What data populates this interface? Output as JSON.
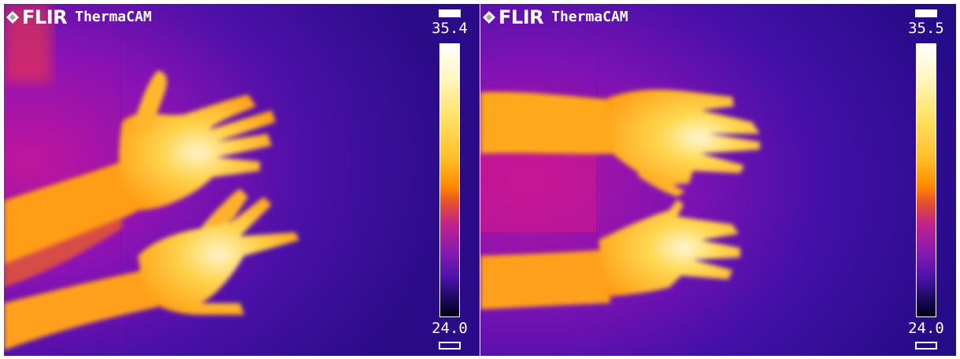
{
  "panels": [
    {
      "brand": "FLIR",
      "product": "ThermaCAM",
      "scale_max": "35.4",
      "scale_min": "24.0"
    },
    {
      "brand": "FLIR",
      "product": "ThermaCAM",
      "scale_max": "35.5",
      "scale_min": "24.0"
    }
  ],
  "colors": {
    "background": "#3a0fa0",
    "hot": "#ffd23c",
    "warm": "#ff9a14",
    "mid": "#b81ab8"
  }
}
